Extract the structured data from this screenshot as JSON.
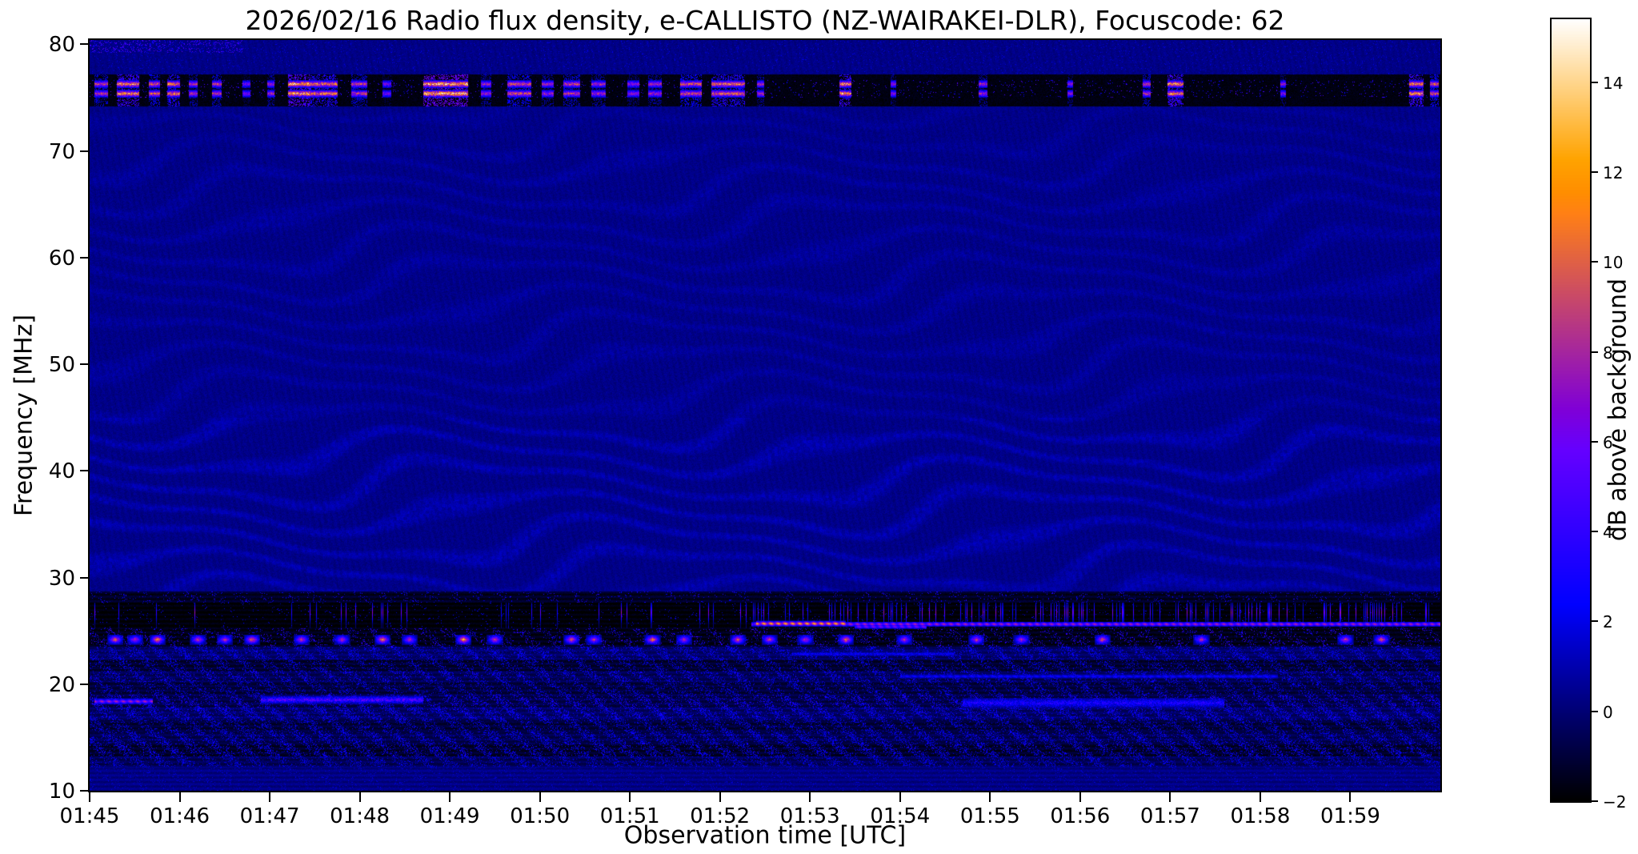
{
  "chart_data": {
    "type": "heatmap",
    "title": "2026/02/16  Radio flux density, e-CALLISTO (NZ-WAIRAKEI-DLR), Focuscode: 62",
    "xlabel": "Observation time [UTC]",
    "ylabel": "Frequency [MHz]",
    "colorbar_label": "dB above background",
    "x_start": "01:45",
    "x_end": "02:00",
    "duration_minutes": 15,
    "x_ticks": [
      "01:45",
      "01:46",
      "01:47",
      "01:48",
      "01:49",
      "01:50",
      "01:51",
      "01:52",
      "01:53",
      "01:54",
      "01:55",
      "01:56",
      "01:57",
      "01:58",
      "01:59"
    ],
    "x_tick_minutes": [
      0,
      1,
      2,
      3,
      4,
      5,
      6,
      7,
      8,
      9,
      10,
      11,
      12,
      13,
      14
    ],
    "y_ticks": [
      10,
      20,
      30,
      40,
      50,
      60,
      70,
      80
    ],
    "freq_range_mhz": [
      10,
      80.4
    ],
    "value_range_db": [
      -2,
      15.4
    ],
    "colorbar_tick_values": [
      -2,
      0,
      2,
      4,
      6,
      8,
      10,
      12,
      14
    ],
    "colorbar_tick_labels": [
      "−2",
      "0",
      "2",
      "4",
      "6",
      "8",
      "10",
      "12",
      "14"
    ],
    "colormap": "gnuplot2",
    "grid": false,
    "background_db": 0.3,
    "features": {
      "fringe_regions": [
        {
          "f_lo": 28.7,
          "f_hi": 45.0,
          "amp": 0.9
        },
        {
          "f_lo": 45.0,
          "f_hi": 70.0,
          "amp": 0.5
        },
        {
          "f_lo": 70.0,
          "f_hi": 74.2,
          "amp": 0.35
        }
      ],
      "top_rfi_band": {
        "f_lo": 74.2,
        "f_hi": 77.2,
        "base_db": -2.0,
        "bright_rows": [
          75.4,
          76.3
        ],
        "bursts": [
          [
            0.05,
            0.2,
            10
          ],
          [
            0.3,
            0.55,
            13
          ],
          [
            0.65,
            0.78,
            11
          ],
          [
            0.86,
            1.0,
            12
          ],
          [
            1.1,
            1.2,
            9
          ],
          [
            1.36,
            1.46,
            10
          ],
          [
            1.69,
            1.78,
            7
          ],
          [
            1.97,
            2.05,
            9
          ],
          [
            2.2,
            2.45,
            14
          ],
          [
            2.45,
            2.75,
            12
          ],
          [
            2.9,
            3.08,
            10
          ],
          [
            3.25,
            3.35,
            7
          ],
          [
            3.7,
            4.2,
            15
          ],
          [
            4.34,
            4.46,
            9
          ],
          [
            4.64,
            4.9,
            11
          ],
          [
            5.02,
            5.15,
            9
          ],
          [
            5.26,
            5.45,
            10
          ],
          [
            5.57,
            5.73,
            9
          ],
          [
            5.97,
            6.1,
            8
          ],
          [
            6.2,
            6.35,
            9
          ],
          [
            6.56,
            6.8,
            11
          ],
          [
            6.9,
            7.28,
            12
          ],
          [
            7.41,
            7.49,
            9
          ],
          [
            8.33,
            8.46,
            13
          ],
          [
            8.9,
            8.96,
            8
          ],
          [
            9.87,
            9.97,
            9
          ],
          [
            10.86,
            10.92,
            8
          ],
          [
            11.7,
            11.79,
            10
          ],
          [
            11.97,
            12.15,
            13
          ],
          [
            13.23,
            13.29,
            8
          ],
          [
            14.66,
            14.82,
            13
          ],
          [
            14.89,
            14.99,
            11
          ]
        ]
      },
      "top_edge_speckle": {
        "f_above": 79.2,
        "t_until": 1.7,
        "v_max": 6.0
      },
      "black_band": {
        "f_lo": 25.2,
        "f_hi": 27.6,
        "base_db": -1.9,
        "active_after": 7.2,
        "thresh_active": 0.86,
        "thresh_quiet": 0.965,
        "spike_lo": 2.5,
        "spike_hi": 8.0,
        "spike_center": 26.7,
        "spike_halfwidth": 1.1
      },
      "line_segments": [
        {
          "f": 25.6,
          "hw": 0.25,
          "t0": 7.35,
          "t1": 15.0,
          "v": 9.0,
          "speckly": false
        },
        {
          "f": 25.65,
          "hw": 0.28,
          "t0": 7.4,
          "t1": 8.4,
          "v": 13.5,
          "speckly": false
        },
        {
          "f": 25.35,
          "hw": 0.2,
          "t0": 8.5,
          "t1": 9.3,
          "v": 7.5,
          "speckly": false
        },
        {
          "f": 18.35,
          "hw": 0.3,
          "t0": 0.05,
          "t1": 0.7,
          "v": 8.5,
          "speckly": false
        },
        {
          "f": 18.5,
          "hw": 0.4,
          "t0": 1.9,
          "t1": 3.7,
          "v": 6.5,
          "speckly": true
        },
        {
          "f": 18.2,
          "hw": 0.5,
          "t0": 9.7,
          "t1": 12.6,
          "v": 4.2,
          "speckly": true
        },
        {
          "f": 20.7,
          "hw": 0.2,
          "t0": 9.0,
          "t1": 13.2,
          "v": 3.2,
          "speckly": false
        },
        {
          "f": 22.8,
          "hw": 0.2,
          "t0": 7.8,
          "t1": 9.6,
          "v": 3.4,
          "speckly": true
        }
      ],
      "blob_band": {
        "freq": 24.15,
        "half_t": 0.09,
        "half_f": 0.5,
        "blobs": [
          [
            0.28,
            12
          ],
          [
            0.5,
            10
          ],
          [
            0.75,
            14
          ],
          [
            1.2,
            11
          ],
          [
            1.5,
            10
          ],
          [
            1.8,
            13
          ],
          [
            2.35,
            11
          ],
          [
            2.8,
            10
          ],
          [
            3.25,
            14
          ],
          [
            3.55,
            10
          ],
          [
            4.15,
            15
          ],
          [
            4.5,
            11
          ],
          [
            5.35,
            12
          ],
          [
            5.6,
            10
          ],
          [
            6.25,
            13
          ],
          [
            6.6,
            10
          ],
          [
            7.2,
            12
          ],
          [
            7.55,
            11
          ],
          [
            7.95,
            10
          ],
          [
            8.4,
            13
          ],
          [
            9.05,
            10
          ],
          [
            9.85,
            11
          ],
          [
            10.35,
            10
          ],
          [
            11.25,
            12
          ],
          [
            12.35,
            10
          ],
          [
            13.95,
            11
          ],
          [
            14.35,
            12
          ]
        ]
      },
      "noise_bands": [
        {
          "f_lo": 27.6,
          "f_hi": 28.7,
          "base": -1.4,
          "speckle": 0.1,
          "s_lo": 1.0,
          "s_hi": 4.0
        },
        {
          "f_lo": 25.2,
          "f_hi": 27.6,
          "base": -1.9,
          "speckle": 0.04,
          "s_lo": 0.8,
          "s_hi": 3.0
        },
        {
          "f_lo": 23.5,
          "f_hi": 25.2,
          "base": -1.6,
          "speckle": 0.18,
          "s_lo": 0.8,
          "s_hi": 5.0
        },
        {
          "f_lo": 22.3,
          "f_hi": 23.5,
          "base": -0.3,
          "speckle": 0.45,
          "s_lo": 0.5,
          "s_hi": 3.2
        },
        {
          "f_lo": 21.2,
          "f_hi": 22.3,
          "base": -1.2,
          "speckle": 0.3,
          "s_lo": 0.5,
          "s_hi": 3.0
        },
        {
          "f_lo": 20.2,
          "f_hi": 21.2,
          "base": -0.6,
          "speckle": 0.4,
          "s_lo": 0.5,
          "s_hi": 3.5
        },
        {
          "f_lo": 19.0,
          "f_hi": 20.2,
          "base": -1.0,
          "speckle": 0.3,
          "s_lo": 0.5,
          "s_hi": 3.0
        },
        {
          "f_lo": 17.8,
          "f_hi": 19.0,
          "base": -0.8,
          "speckle": 0.4,
          "s_lo": 0.5,
          "s_hi": 4.0
        },
        {
          "f_lo": 16.6,
          "f_hi": 17.8,
          "base": -0.4,
          "speckle": 0.5,
          "s_lo": 0.5,
          "s_hi": 3.5
        },
        {
          "f_lo": 15.5,
          "f_hi": 16.6,
          "base": -1.1,
          "speckle": 0.35,
          "s_lo": 0.5,
          "s_hi": 3.0
        },
        {
          "f_lo": 14.4,
          "f_hi": 15.5,
          "base": -0.7,
          "speckle": 0.45,
          "s_lo": 0.5,
          "s_hi": 3.2
        },
        {
          "f_lo": 13.2,
          "f_hi": 14.4,
          "base": -1.3,
          "speckle": 0.4,
          "s_lo": 0.5,
          "s_hi": 3.5
        },
        {
          "f_lo": 12.2,
          "f_hi": 13.2,
          "base": -0.6,
          "speckle": 0.4,
          "s_lo": 0.4,
          "s_hi": 2.8
        },
        {
          "f_lo": 10.0,
          "f_hi": 12.2,
          "base": 0.2,
          "speckle": 0.15,
          "s_lo": 0.4,
          "s_hi": 2.0
        }
      ]
    }
  }
}
